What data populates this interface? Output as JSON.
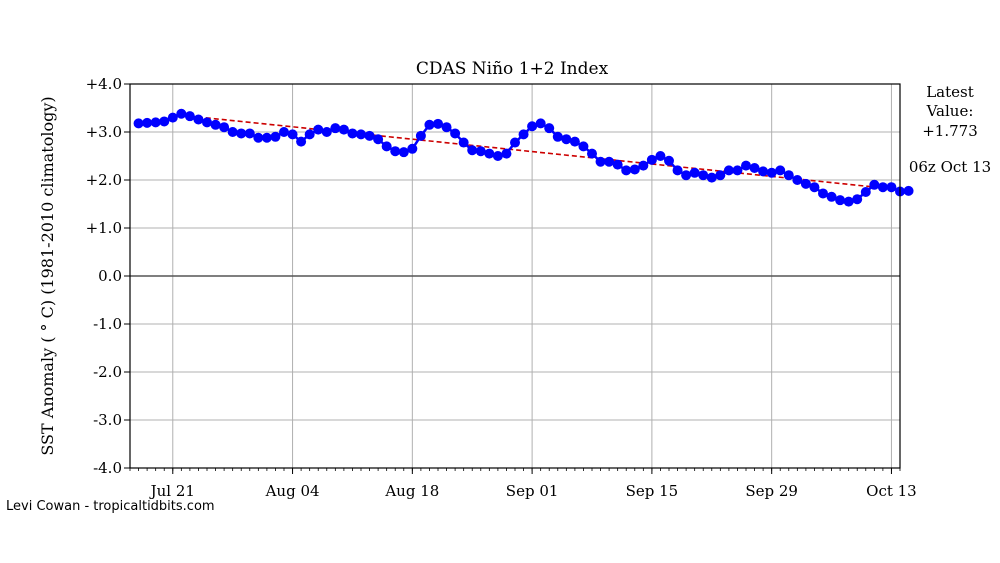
{
  "chart_data": {
    "type": "line",
    "title": "CDAS Niño 1+2 Index",
    "ylabel": "SST Anomaly ( ° C) (1981-2010 climatology)",
    "xlabel": "",
    "ylim": [
      -4.0,
      4.0
    ],
    "yticks": [
      4.0,
      3.0,
      2.0,
      1.0,
      0.0,
      -1.0,
      -2.0,
      -3.0,
      -4.0
    ],
    "ytick_labels": [
      "+4.0",
      "+3.0",
      "+2.0",
      "+1.0",
      "0.0",
      "-1.0",
      "-2.0",
      "-3.0",
      "-4.0"
    ],
    "x_start": "2017-07-16",
    "x_end": "2017-10-14",
    "xtick_dates": [
      "2017-07-21",
      "2017-08-04",
      "2017-08-18",
      "2017-09-01",
      "2017-09-15",
      "2017-09-29",
      "2017-10-13"
    ],
    "xtick_labels": [
      "Jul 21",
      "Aug 04",
      "Aug 18",
      "Sep 01",
      "Sep 15",
      "Sep 29",
      "Oct 13"
    ],
    "grid": true,
    "series": [
      {
        "name": "",
        "color": "#0000ff",
        "start_date": "2017-07-17",
        "step_days": 1,
        "values": [
          3.18,
          3.19,
          3.2,
          3.22,
          3.3,
          3.38,
          3.33,
          3.26,
          3.2,
          3.15,
          3.1,
          3.0,
          2.97,
          2.97,
          2.88,
          2.88,
          2.9,
          3.0,
          2.95,
          2.8,
          2.95,
          3.05,
          3.0,
          3.08,
          3.05,
          2.97,
          2.95,
          2.92,
          2.85,
          2.7,
          2.6,
          2.58,
          2.65,
          2.92,
          3.15,
          3.17,
          3.1,
          2.97,
          2.78,
          2.62,
          2.6,
          2.55,
          2.5,
          2.55,
          2.78,
          2.95,
          3.12,
          3.18,
          3.08,
          2.9,
          2.85,
          2.8,
          2.7,
          2.55,
          2.38,
          2.38,
          2.32,
          2.2,
          2.22,
          2.3,
          2.42,
          2.5,
          2.4,
          2.2,
          2.1,
          2.15,
          2.1,
          2.05,
          2.1,
          2.2,
          2.2,
          2.3,
          2.25,
          2.18,
          2.15,
          2.2,
          2.1,
          2.0,
          1.92,
          1.85,
          1.72,
          1.65,
          1.58,
          1.55,
          1.6,
          1.75,
          1.9,
          1.85,
          1.85,
          1.76,
          1.773
        ]
      }
    ],
    "trend": {
      "color": "#cc0000",
      "style": "dashed",
      "start": 3.33,
      "end": 1.78
    },
    "zero_line": true,
    "annotation": {
      "label_line1": "Latest",
      "label_line2": "Value:",
      "value": "+1.773",
      "timestamp": "06z Oct 13"
    },
    "credit": "Levi Cowan - tropicaltidbits.com"
  }
}
